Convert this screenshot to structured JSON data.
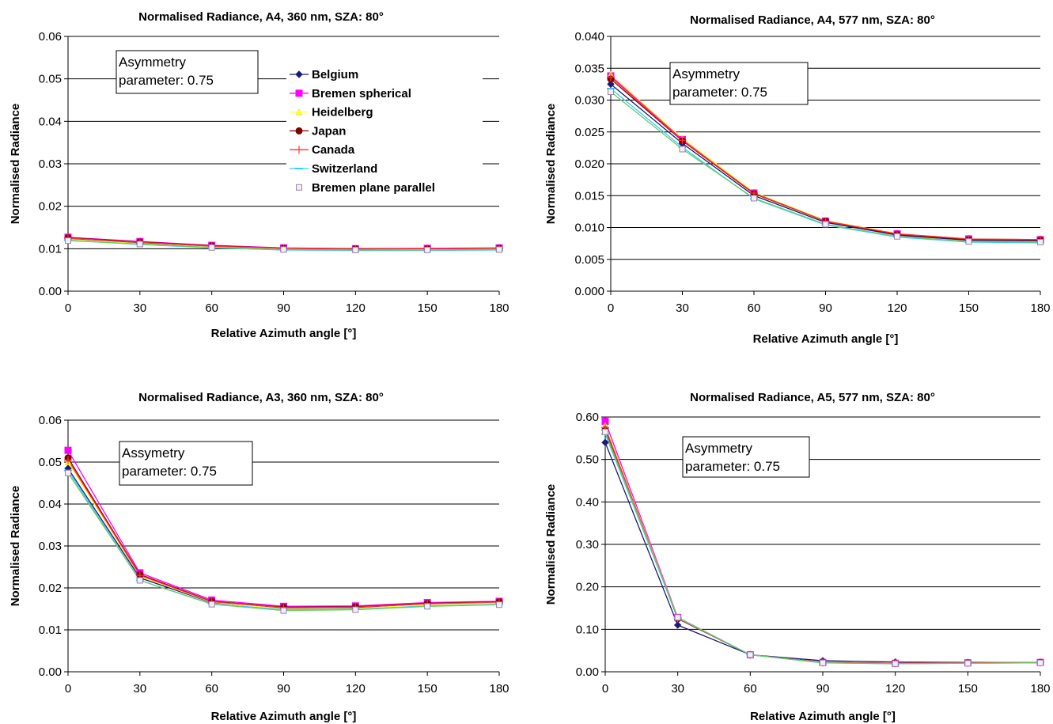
{
  "series_styles": [
    {
      "name": "Belgium",
      "color": "#1a1a7a",
      "marker": "diamond"
    },
    {
      "name": "Bremen spherical",
      "color": "#ff00ff",
      "marker": "square"
    },
    {
      "name": "Heidelberg",
      "color": "#ffff33",
      "marker": "triangle"
    },
    {
      "name": "Japan",
      "color": "#800000",
      "marker": "circle"
    },
    {
      "name": "Canada",
      "color": "#ff3333",
      "marker": "plus"
    },
    {
      "name": "Switzerland",
      "color": "#33ccff",
      "marker": "dash"
    },
    {
      "name": "Bremen plane parallel",
      "color": "#66cc66",
      "marker": "opensquare"
    }
  ],
  "chart_data": [
    {
      "type": "line",
      "title": "Normalised Radiance, A4, 360 nm, SZA: 80°",
      "xlabel": "Relative Azimuth angle [°]",
      "ylabel": "Normalised Radiance",
      "xlim": [
        0,
        180
      ],
      "ylim": [
        0,
        0.06
      ],
      "xticks": [
        "0",
        "30",
        "60",
        "90",
        "120",
        "150",
        "180"
      ],
      "yticks": [
        "0.00",
        "0.01",
        "0.02",
        "0.03",
        "0.04",
        "0.05",
        "0.06"
      ],
      "grid": "horizontal",
      "legend": true,
      "annotation": [
        "Asymmetry",
        "parameter:   0.75"
      ],
      "x": [
        0,
        30,
        60,
        90,
        120,
        150,
        180
      ],
      "series": [
        {
          "name": "Belgium",
          "values": [
            0.0123,
            0.0113,
            0.0105,
            0.01,
            0.0099,
            0.0099,
            0.01
          ]
        },
        {
          "name": "Bremen spherical",
          "values": [
            0.0127,
            0.0117,
            0.0108,
            0.0102,
            0.01,
            0.0101,
            0.0102
          ]
        },
        {
          "name": "Heidelberg",
          "values": [
            0.0122,
            0.0112,
            0.0104,
            0.0099,
            0.0098,
            0.0098,
            0.0099
          ]
        },
        {
          "name": "Japan",
          "values": [
            0.0126,
            0.0116,
            0.0107,
            0.0101,
            0.01,
            0.01,
            0.0101
          ]
        },
        {
          "name": "Canada",
          "values": [
            0.0125,
            0.0115,
            0.0106,
            0.0101,
            0.0099,
            0.01,
            0.0101
          ]
        },
        {
          "name": "Switzerland",
          "values": [
            0.012,
            0.011,
            0.0102,
            0.0097,
            0.0096,
            0.0096,
            0.0097
          ]
        },
        {
          "name": "Bremen plane parallel",
          "values": [
            0.0119,
            0.0111,
            0.0103,
            0.0098,
            0.0097,
            0.0097,
            0.0098
          ]
        }
      ]
    },
    {
      "type": "line",
      "title": "Normalised Radiance, A4, 577 nm, SZA: 80°",
      "xlabel": "Relative Azimuth angle [°]",
      "ylabel": "Normalised Radiance",
      "xlim": [
        0,
        180
      ],
      "ylim": [
        0,
        0.04
      ],
      "xticks": [
        "0",
        "30",
        "60",
        "90",
        "120",
        "150",
        "180"
      ],
      "yticks": [
        "0.000",
        "0.005",
        "0.010",
        "0.015",
        "0.020",
        "0.025",
        "0.030",
        "0.035",
        "0.040"
      ],
      "grid": "horizontal",
      "legend": false,
      "annotation": [
        "Asymmetry",
        "parameter:   0.75"
      ],
      "x": [
        0,
        30,
        60,
        90,
        120,
        150,
        180
      ],
      "series": [
        {
          "name": "Belgium",
          "values": [
            0.0325,
            0.0232,
            0.015,
            0.0108,
            0.0088,
            0.008,
            0.0079
          ]
        },
        {
          "name": "Bremen spherical",
          "values": [
            0.0338,
            0.0238,
            0.0154,
            0.011,
            0.009,
            0.0082,
            0.0081
          ]
        },
        {
          "name": "Heidelberg",
          "values": [
            0.034,
            0.024,
            0.0155,
            0.0111,
            0.009,
            0.0082,
            0.0081
          ]
        },
        {
          "name": "Japan",
          "values": [
            0.0333,
            0.0236,
            0.0153,
            0.011,
            0.0089,
            0.0081,
            0.008
          ]
        },
        {
          "name": "Canada",
          "values": [
            0.0336,
            0.0237,
            0.0154,
            0.011,
            0.009,
            0.0082,
            0.0081
          ]
        },
        {
          "name": "Switzerland",
          "values": [
            0.0318,
            0.0226,
            0.0145,
            0.0104,
            0.0085,
            0.0077,
            0.0076
          ]
        },
        {
          "name": "Bremen plane parallel",
          "values": [
            0.0313,
            0.0223,
            0.0146,
            0.0105,
            0.0086,
            0.0078,
            0.0077
          ]
        }
      ]
    },
    {
      "type": "line",
      "title": "Normalised Radiance, A3, 360 nm, SZA: 80°",
      "xlabel": "Relative Azimuth angle [°]",
      "ylabel": "Normalised Radiance",
      "xlim": [
        0,
        180
      ],
      "ylim": [
        0,
        0.06
      ],
      "xticks": [
        "0",
        "30",
        "60",
        "90",
        "120",
        "150",
        "180"
      ],
      "yticks": [
        "0.00",
        "0.01",
        "0.02",
        "0.03",
        "0.04",
        "0.05",
        "0.06"
      ],
      "grid": "horizontal",
      "legend": false,
      "annotation": [
        "Assymetry",
        "parameter:   0.75"
      ],
      "x": [
        0,
        30,
        60,
        90,
        120,
        150,
        180
      ],
      "series": [
        {
          "name": "Belgium",
          "values": [
            0.0485,
            0.0224,
            0.0165,
            0.0152,
            0.0153,
            0.0161,
            0.0165
          ]
        },
        {
          "name": "Bremen spherical",
          "values": [
            0.0528,
            0.0236,
            0.0171,
            0.0156,
            0.0157,
            0.0165,
            0.0168
          ]
        },
        {
          "name": "Heidelberg",
          "values": [
            0.05,
            0.0228,
            0.0166,
            0.015,
            0.0151,
            0.016,
            0.0164
          ]
        },
        {
          "name": "Japan",
          "values": [
            0.051,
            0.0232,
            0.0168,
            0.0154,
            0.0155,
            0.0163,
            0.0167
          ]
        },
        {
          "name": "Canada",
          "values": [
            0.0505,
            0.023,
            0.0167,
            0.0153,
            0.0154,
            0.0162,
            0.0166
          ]
        },
        {
          "name": "Switzerland",
          "values": [
            0.048,
            0.0218,
            0.0162,
            0.0148,
            0.0149,
            0.0157,
            0.0161
          ]
        },
        {
          "name": "Bremen plane parallel",
          "values": [
            0.0474,
            0.0218,
            0.0161,
            0.0146,
            0.0148,
            0.0156,
            0.016
          ]
        }
      ]
    },
    {
      "type": "line",
      "title": "Normalised Radiance, A5, 577 nm, SZA: 80°",
      "xlabel": "Relative Azimuth angle [°]",
      "ylabel": "Normalised Radiance",
      "xlim": [
        0,
        180
      ],
      "ylim": [
        0,
        0.6
      ],
      "xticks": [
        "0",
        "30",
        "60",
        "90",
        "120",
        "150",
        "180"
      ],
      "yticks": [
        "0.00",
        "0.10",
        "0.20",
        "0.30",
        "0.40",
        "0.50",
        "0.60"
      ],
      "grid": "horizontal",
      "legend": false,
      "annotation": [
        "Asymmetry",
        "parameter:   0.75"
      ],
      "x": [
        0,
        30,
        60,
        90,
        120,
        150,
        180
      ],
      "series": [
        {
          "name": "Belgium",
          "values": [
            0.54,
            0.11,
            0.04,
            0.026,
            0.023,
            0.022,
            0.022
          ]
        },
        {
          "name": "Bremen spherical",
          "values": [
            0.59,
            0.128,
            0.04,
            0.022,
            0.02,
            0.021,
            0.022
          ]
        },
        {
          "name": "Heidelberg",
          "values": [
            0.58,
            0.126,
            0.04,
            0.022,
            0.02,
            0.021,
            0.022
          ]
        },
        {
          "name": "Japan",
          "values": [
            0.57,
            0.125,
            0.04,
            0.022,
            0.02,
            0.021,
            0.022
          ]
        },
        {
          "name": "Canada",
          "values": [
            0.575,
            0.126,
            0.04,
            0.022,
            0.02,
            0.021,
            0.022
          ]
        },
        {
          "name": "Switzerland",
          "values": [
            0.56,
            0.127,
            0.04,
            0.021,
            0.019,
            0.02,
            0.021
          ]
        },
        {
          "name": "Bremen plane parallel",
          "values": [
            0.565,
            0.128,
            0.04,
            0.021,
            0.019,
            0.02,
            0.021
          ]
        }
      ]
    }
  ]
}
